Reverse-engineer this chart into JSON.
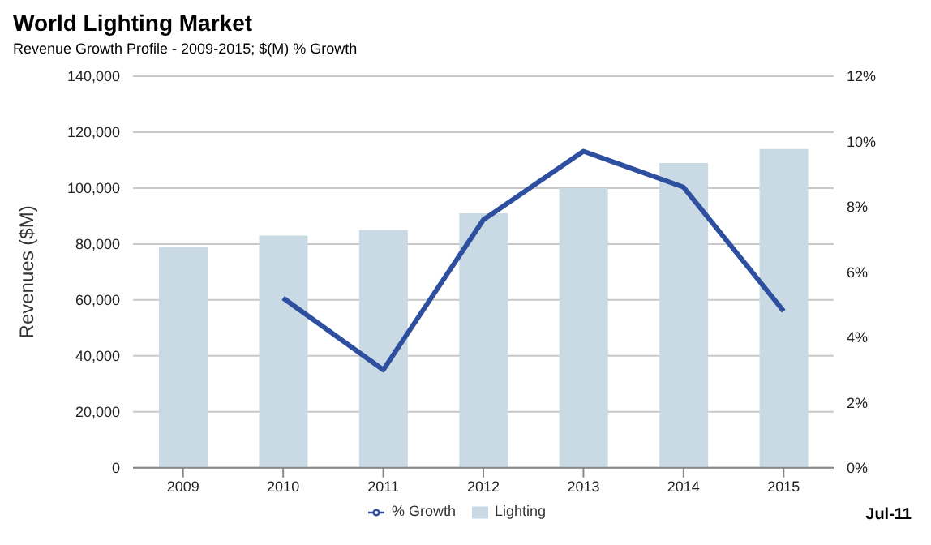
{
  "chart_data": {
    "type": "bar",
    "title": "World Lighting Market",
    "subtitle": "Revenue Growth Profile - 2009-2015;  $(M) % Growth",
    "ylabel": "Revenues ($M)",
    "annotations": [
      "Jul-11"
    ],
    "categories": [
      "2009",
      "2010",
      "2011",
      "2012",
      "2013",
      "2014",
      "2015"
    ],
    "series": [
      {
        "name": "Lighting",
        "color": "#c9dae4",
        "values": [
          79000,
          83000,
          85000,
          91000,
          100000,
          109000,
          114000
        ]
      },
      {
        "name": "% Growth",
        "type": "line",
        "axis": "y2",
        "color": "#2e4fa0",
        "values": [
          null,
          5.2,
          3.0,
          7.6,
          9.7,
          8.6,
          4.8
        ]
      }
    ],
    "ylim": [
      0,
      140000
    ],
    "yticks": [
      0,
      {
        "value": 20000,
        "label": "20,000"
      },
      {
        "value": 40000,
        "label": "40,000"
      },
      {
        "value": 60000,
        "label": "60,000"
      },
      {
        "value": 80000,
        "label": "80,000"
      },
      {
        "value": 100000,
        "label": "100,000"
      },
      {
        "value": 120000,
        "label": "120,000"
      },
      {
        "value": 140000,
        "label": "140,000"
      }
    ],
    "y2lim": [
      0,
      12
    ],
    "y2ticks": [
      {
        "value": 0,
        "label": "0%"
      },
      {
        "value": 2,
        "label": "2%"
      },
      {
        "value": 4,
        "label": "4%"
      },
      {
        "value": 6,
        "label": "6%"
      },
      {
        "value": 8,
        "label": "8%"
      },
      {
        "value": 10,
        "label": "10%"
      },
      {
        "value": 12,
        "label": "12%"
      }
    ],
    "grid": "y",
    "legend": "bottom",
    "marker": "none",
    "line_style": "solid"
  }
}
